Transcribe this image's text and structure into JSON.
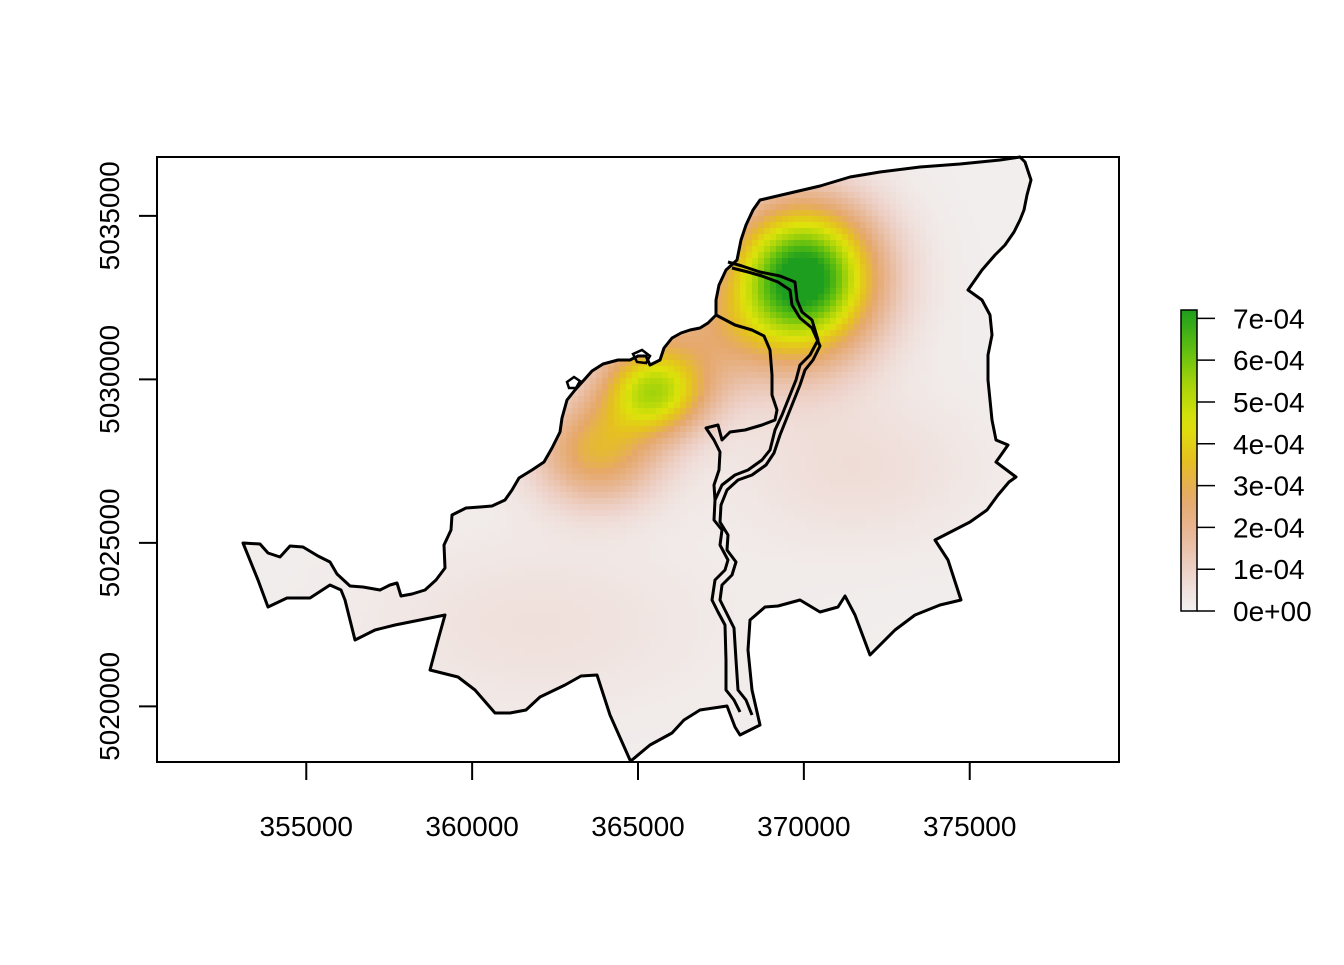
{
  "chart_data": {
    "type": "heatmap",
    "title": "",
    "xlabel": "",
    "ylabel": "",
    "xlim": [
      350500,
      379500
    ],
    "ylim": [
      5018300,
      5036800
    ],
    "x_ticks": [
      {
        "value": 355000,
        "label": "355000"
      },
      {
        "value": 360000,
        "label": "360000"
      },
      {
        "value": 365000,
        "label": "365000"
      },
      {
        "value": 370000,
        "label": "370000"
      },
      {
        "value": 375000,
        "label": "375000"
      }
    ],
    "y_ticks": [
      {
        "value": 5020000,
        "label": "5020000"
      },
      {
        "value": 5025000,
        "label": "5025000"
      },
      {
        "value": 5030000,
        "label": "5030000"
      },
      {
        "value": 5035000,
        "label": "5035000"
      }
    ],
    "legend": {
      "placement": "right",
      "min": 0,
      "max": 0.00072,
      "ticks": [
        {
          "value": 0,
          "label": "0e+00"
        },
        {
          "value": 0.0001,
          "label": "1e-04"
        },
        {
          "value": 0.0002,
          "label": "2e-04"
        },
        {
          "value": 0.0003,
          "label": "3e-04"
        },
        {
          "value": 0.0004,
          "label": "4e-04"
        },
        {
          "value": 0.0005,
          "label": "5e-04"
        },
        {
          "value": 0.0006,
          "label": "6e-04"
        },
        {
          "value": 0.0007,
          "label": "7e-04"
        }
      ],
      "colors": [
        "#f2f2f2",
        "#eed3cb",
        "#e8b99a",
        "#e6a86a",
        "#e5c020",
        "#dde30a",
        "#a8d40a",
        "#5bbd10",
        "#1e9e1e"
      ]
    },
    "hotspots": [
      {
        "x": 370000,
        "y": 5033200,
        "peak": 0.00072
      },
      {
        "x": 365500,
        "y": 5029600,
        "peak": 0.00045
      },
      {
        "x": 363800,
        "y": 5027800,
        "peak": 0.0003
      },
      {
        "x": 369000,
        "y": 5031500,
        "peak": 0.00013
      },
      {
        "x": 366000,
        "y": 5031300,
        "peak": 0.00012
      },
      {
        "x": 371500,
        "y": 5027300,
        "peak": 5e-05
      },
      {
        "x": 362000,
        "y": 5022500,
        "peak": 4e-05
      }
    ]
  }
}
